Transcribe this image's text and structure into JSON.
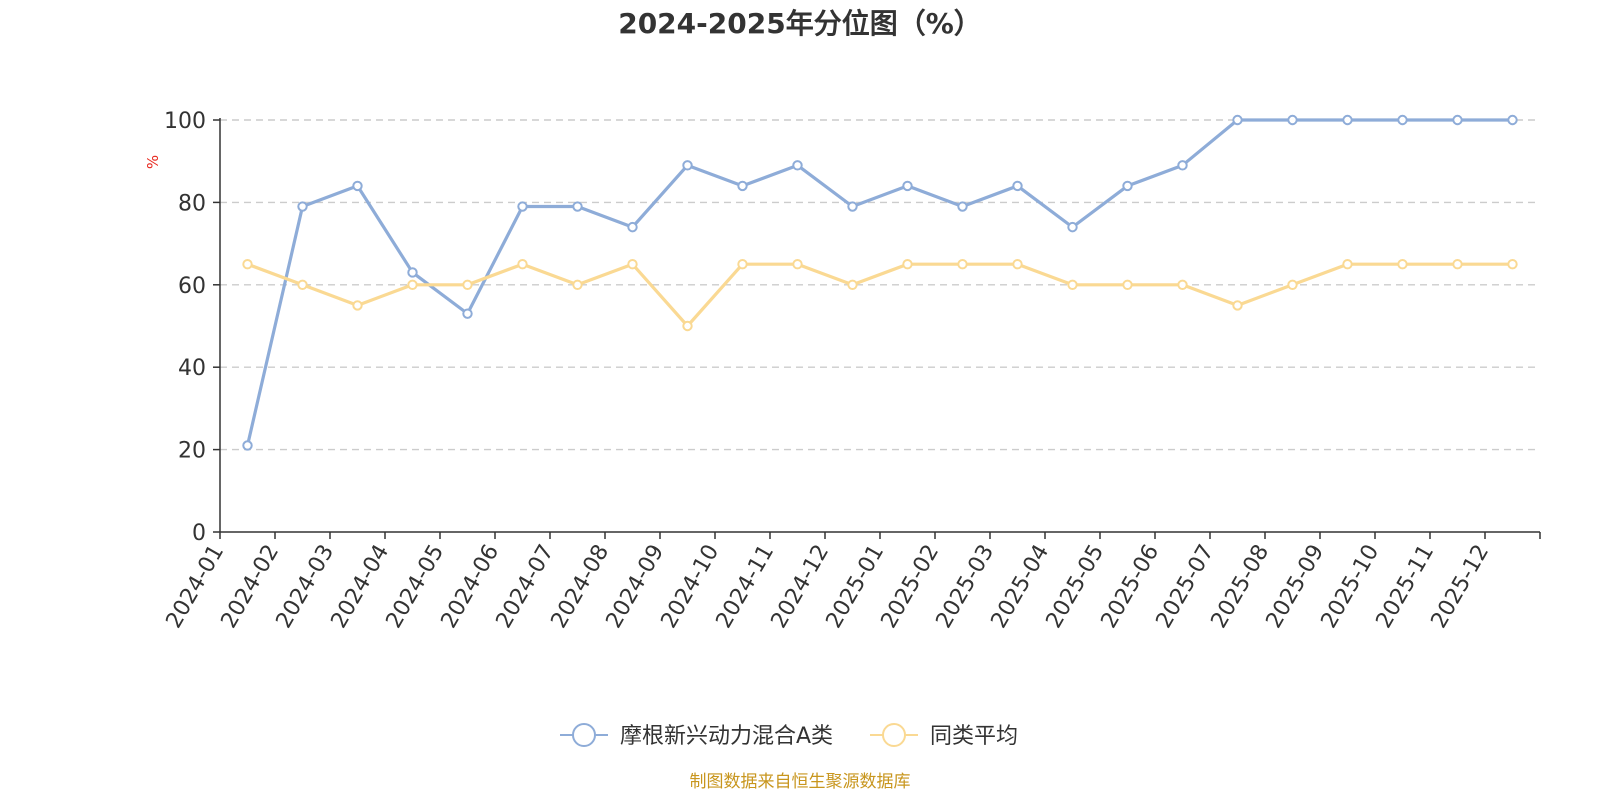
{
  "chart_data": {
    "type": "line",
    "title": "2024-2025年分位图（%）",
    "ylabel": "%",
    "xlabel": "",
    "ylim": [
      0,
      100
    ],
    "yticks": [
      0,
      20,
      40,
      60,
      80,
      100
    ],
    "grid": true,
    "legend_position": "bottom-center",
    "categories": [
      "2024-01",
      "2024-02",
      "2024-03",
      "2024-04",
      "2024-05",
      "2024-06",
      "2024-07",
      "2024-08",
      "2024-09",
      "2024-10",
      "2024-11",
      "2024-12",
      "2025-01",
      "2025-02",
      "2025-03",
      "2025-04",
      "2025-05",
      "2025-06",
      "2025-07",
      "2025-08",
      "2025-09",
      "2025-10",
      "2025-11",
      "2025-12"
    ],
    "series": [
      {
        "name": "摩根新兴动力混合A类",
        "color": "#8eacd8",
        "values": [
          21,
          79,
          84,
          63,
          53,
          79,
          79,
          74,
          89,
          84,
          89,
          79,
          84,
          79,
          84,
          74,
          84,
          89,
          100,
          100,
          100,
          100,
          100,
          100
        ]
      },
      {
        "name": "同类平均",
        "color": "#fad993",
        "values": [
          65,
          60,
          55,
          60,
          60,
          65,
          60,
          65,
          50,
          65,
          65,
          60,
          65,
          65,
          65,
          60,
          60,
          60,
          55,
          60,
          65,
          65,
          65,
          65
        ]
      }
    ],
    "source": "制图数据来自恒生聚源数据库"
  }
}
